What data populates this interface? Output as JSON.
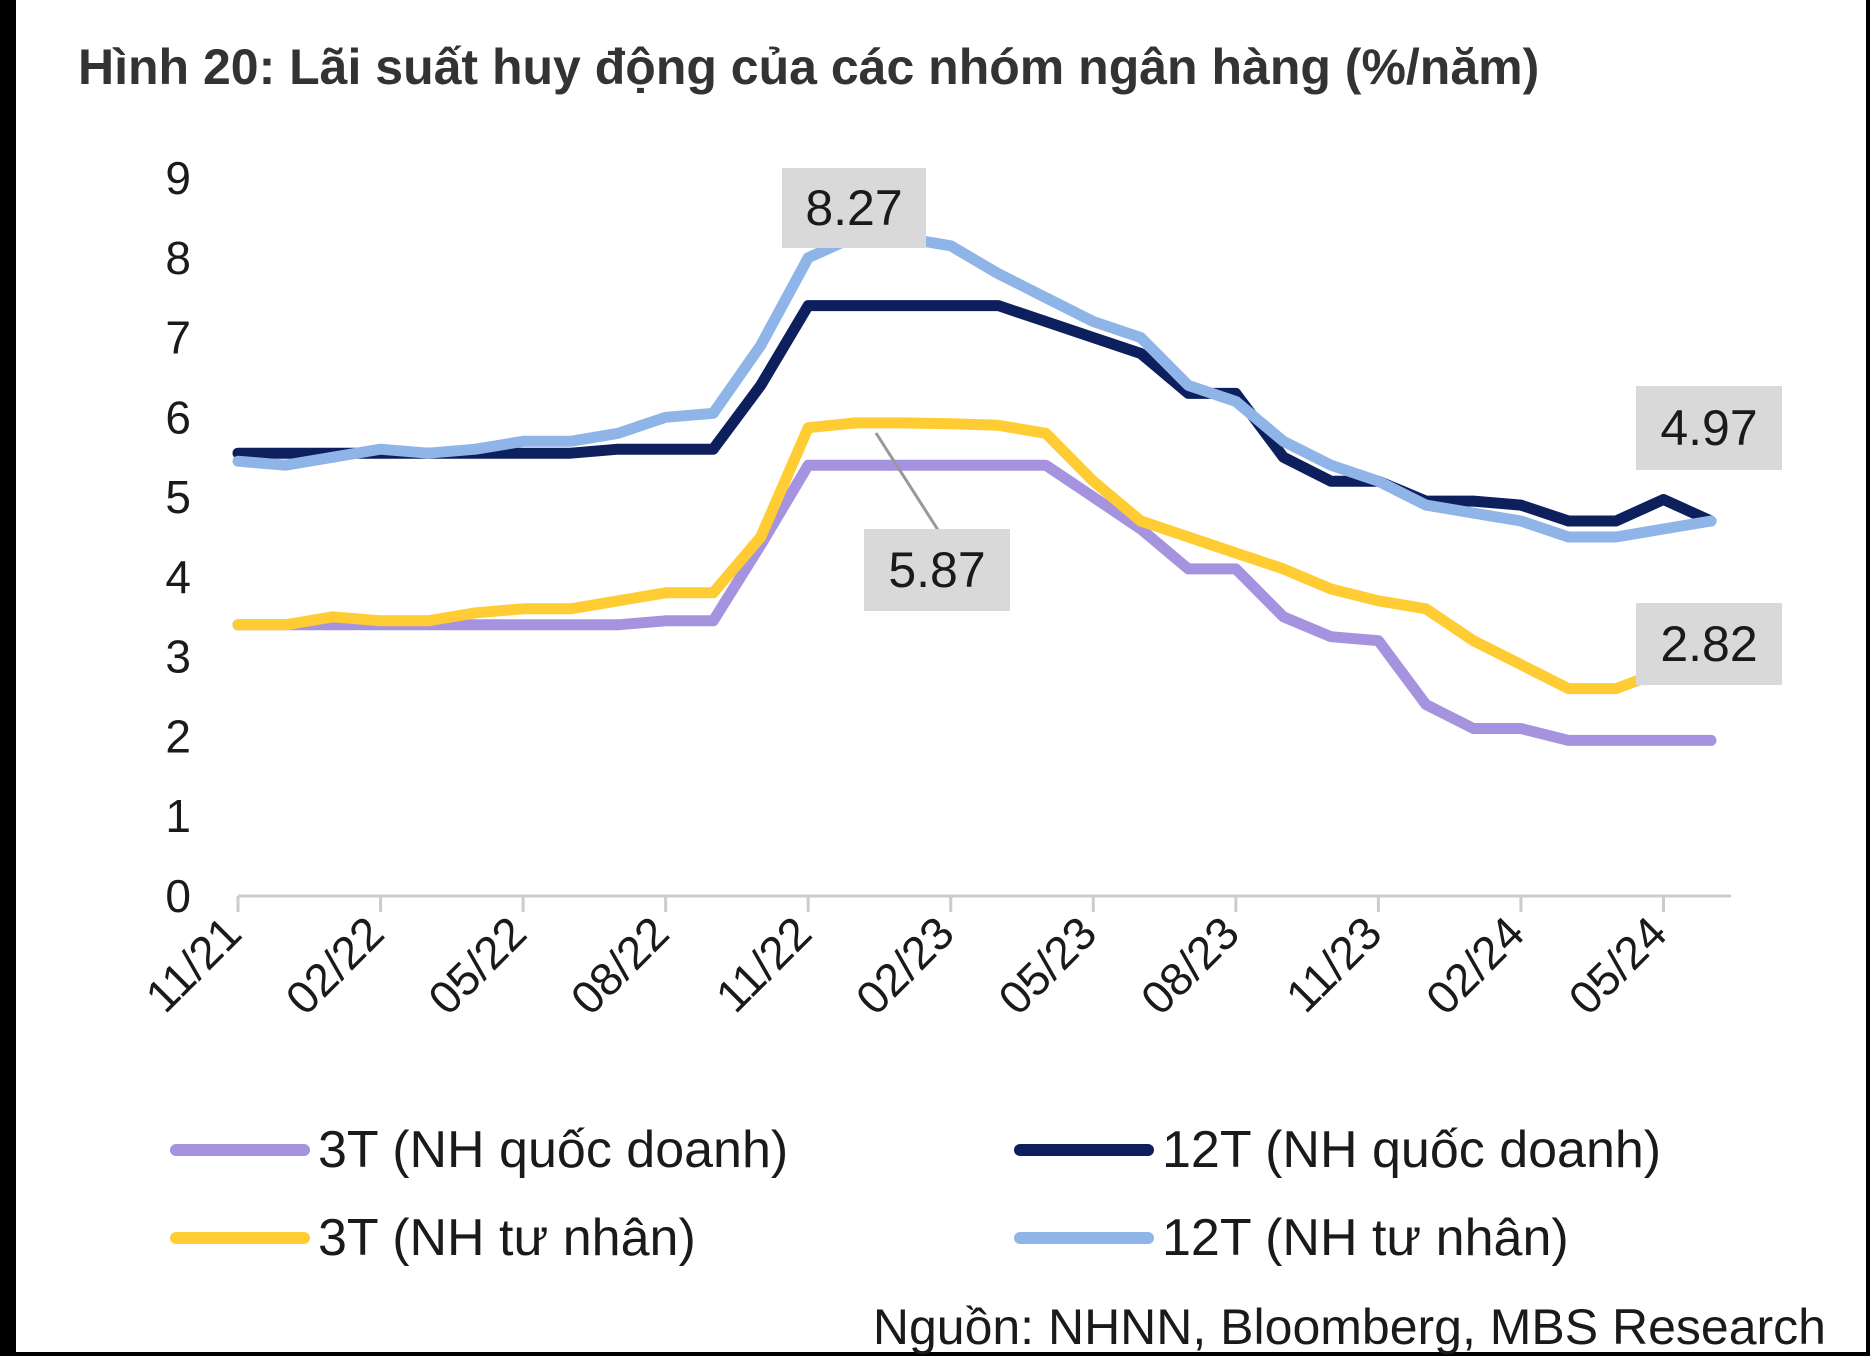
{
  "page": {
    "title": "Hình 20: Lãi suất huy động của các nhóm ngân hàng (%/năm)",
    "source": "Nguồn: NHNN, Bloomberg, MBS Research"
  },
  "chart_data": {
    "type": "line",
    "title": "Hình 20: Lãi suất huy động của các nhóm ngân hàng (%/năm)",
    "xlabel": "",
    "ylabel": "",
    "ylim": [
      0,
      9
    ],
    "yticks": [
      0,
      1,
      2,
      3,
      4,
      5,
      6,
      7,
      8,
      9
    ],
    "categories": [
      "11/21",
      "12/21",
      "01/22",
      "02/22",
      "03/22",
      "04/22",
      "05/22",
      "06/22",
      "07/22",
      "08/22",
      "09/22",
      "10/22",
      "11/22",
      "12/22",
      "01/23",
      "02/23",
      "03/23",
      "04/23",
      "05/23",
      "06/23",
      "07/23",
      "08/23",
      "09/23",
      "10/23",
      "11/23",
      "12/23",
      "01/24",
      "02/24",
      "03/24",
      "04/24",
      "05/24",
      "06/24"
    ],
    "x_tick_labels": [
      "11/21",
      "02/22",
      "05/22",
      "08/22",
      "11/22",
      "02/23",
      "05/23",
      "08/23",
      "11/23",
      "02/24",
      "05/24"
    ],
    "grid": false,
    "legend": "bottom",
    "series": [
      {
        "name": "3T (NH quốc doanh)",
        "color": "#a593e0",
        "values": [
          3.4,
          3.4,
          3.4,
          3.4,
          3.4,
          3.4,
          3.4,
          3.4,
          3.4,
          3.45,
          3.45,
          4.4,
          5.4,
          5.4,
          5.4,
          5.4,
          5.4,
          5.4,
          5.0,
          4.6,
          4.1,
          4.1,
          3.5,
          3.25,
          3.2,
          2.4,
          2.1,
          2.1,
          1.95,
          1.95,
          1.95,
          1.95
        ]
      },
      {
        "name": "12T (NH quốc doanh)",
        "color": "#0d1f5c",
        "values": [
          5.55,
          5.55,
          5.55,
          5.55,
          5.55,
          5.55,
          5.55,
          5.55,
          5.6,
          5.6,
          5.6,
          6.4,
          7.4,
          7.4,
          7.4,
          7.4,
          7.4,
          7.2,
          7.0,
          6.8,
          6.3,
          6.3,
          5.5,
          5.2,
          5.2,
          4.95,
          4.95,
          4.9,
          4.7,
          4.7,
          4.97,
          4.7
        ]
      },
      {
        "name": "3T (NH tư nhân)",
        "color": "#ffcc33",
        "values": [
          3.4,
          3.4,
          3.5,
          3.45,
          3.45,
          3.55,
          3.6,
          3.6,
          3.7,
          3.8,
          3.8,
          4.5,
          5.87,
          5.93,
          5.93,
          5.92,
          5.9,
          5.8,
          5.2,
          4.7,
          4.5,
          4.3,
          4.1,
          3.85,
          3.7,
          3.6,
          3.2,
          2.9,
          2.6,
          2.6,
          2.82,
          2.82
        ]
      },
      {
        "name": "12T (NH tư nhân)",
        "color": "#8fb4e8",
        "values": [
          5.45,
          5.4,
          5.5,
          5.6,
          5.55,
          5.6,
          5.7,
          5.7,
          5.8,
          6.0,
          6.05,
          6.9,
          8.0,
          8.27,
          8.25,
          8.15,
          7.8,
          7.5,
          7.2,
          7.0,
          6.4,
          6.2,
          5.7,
          5.4,
          5.2,
          4.9,
          4.8,
          4.7,
          4.5,
          4.5,
          4.6,
          4.7
        ]
      }
    ],
    "annotations": [
      {
        "text": "8.27",
        "series": "12T (NH tư nhân)"
      },
      {
        "text": "5.87",
        "series": "3T (NH tư nhân)"
      },
      {
        "text": "4.97",
        "series": "12T (NH quốc doanh)"
      },
      {
        "text": "2.82",
        "series": "3T (NH tư nhân)"
      }
    ]
  }
}
